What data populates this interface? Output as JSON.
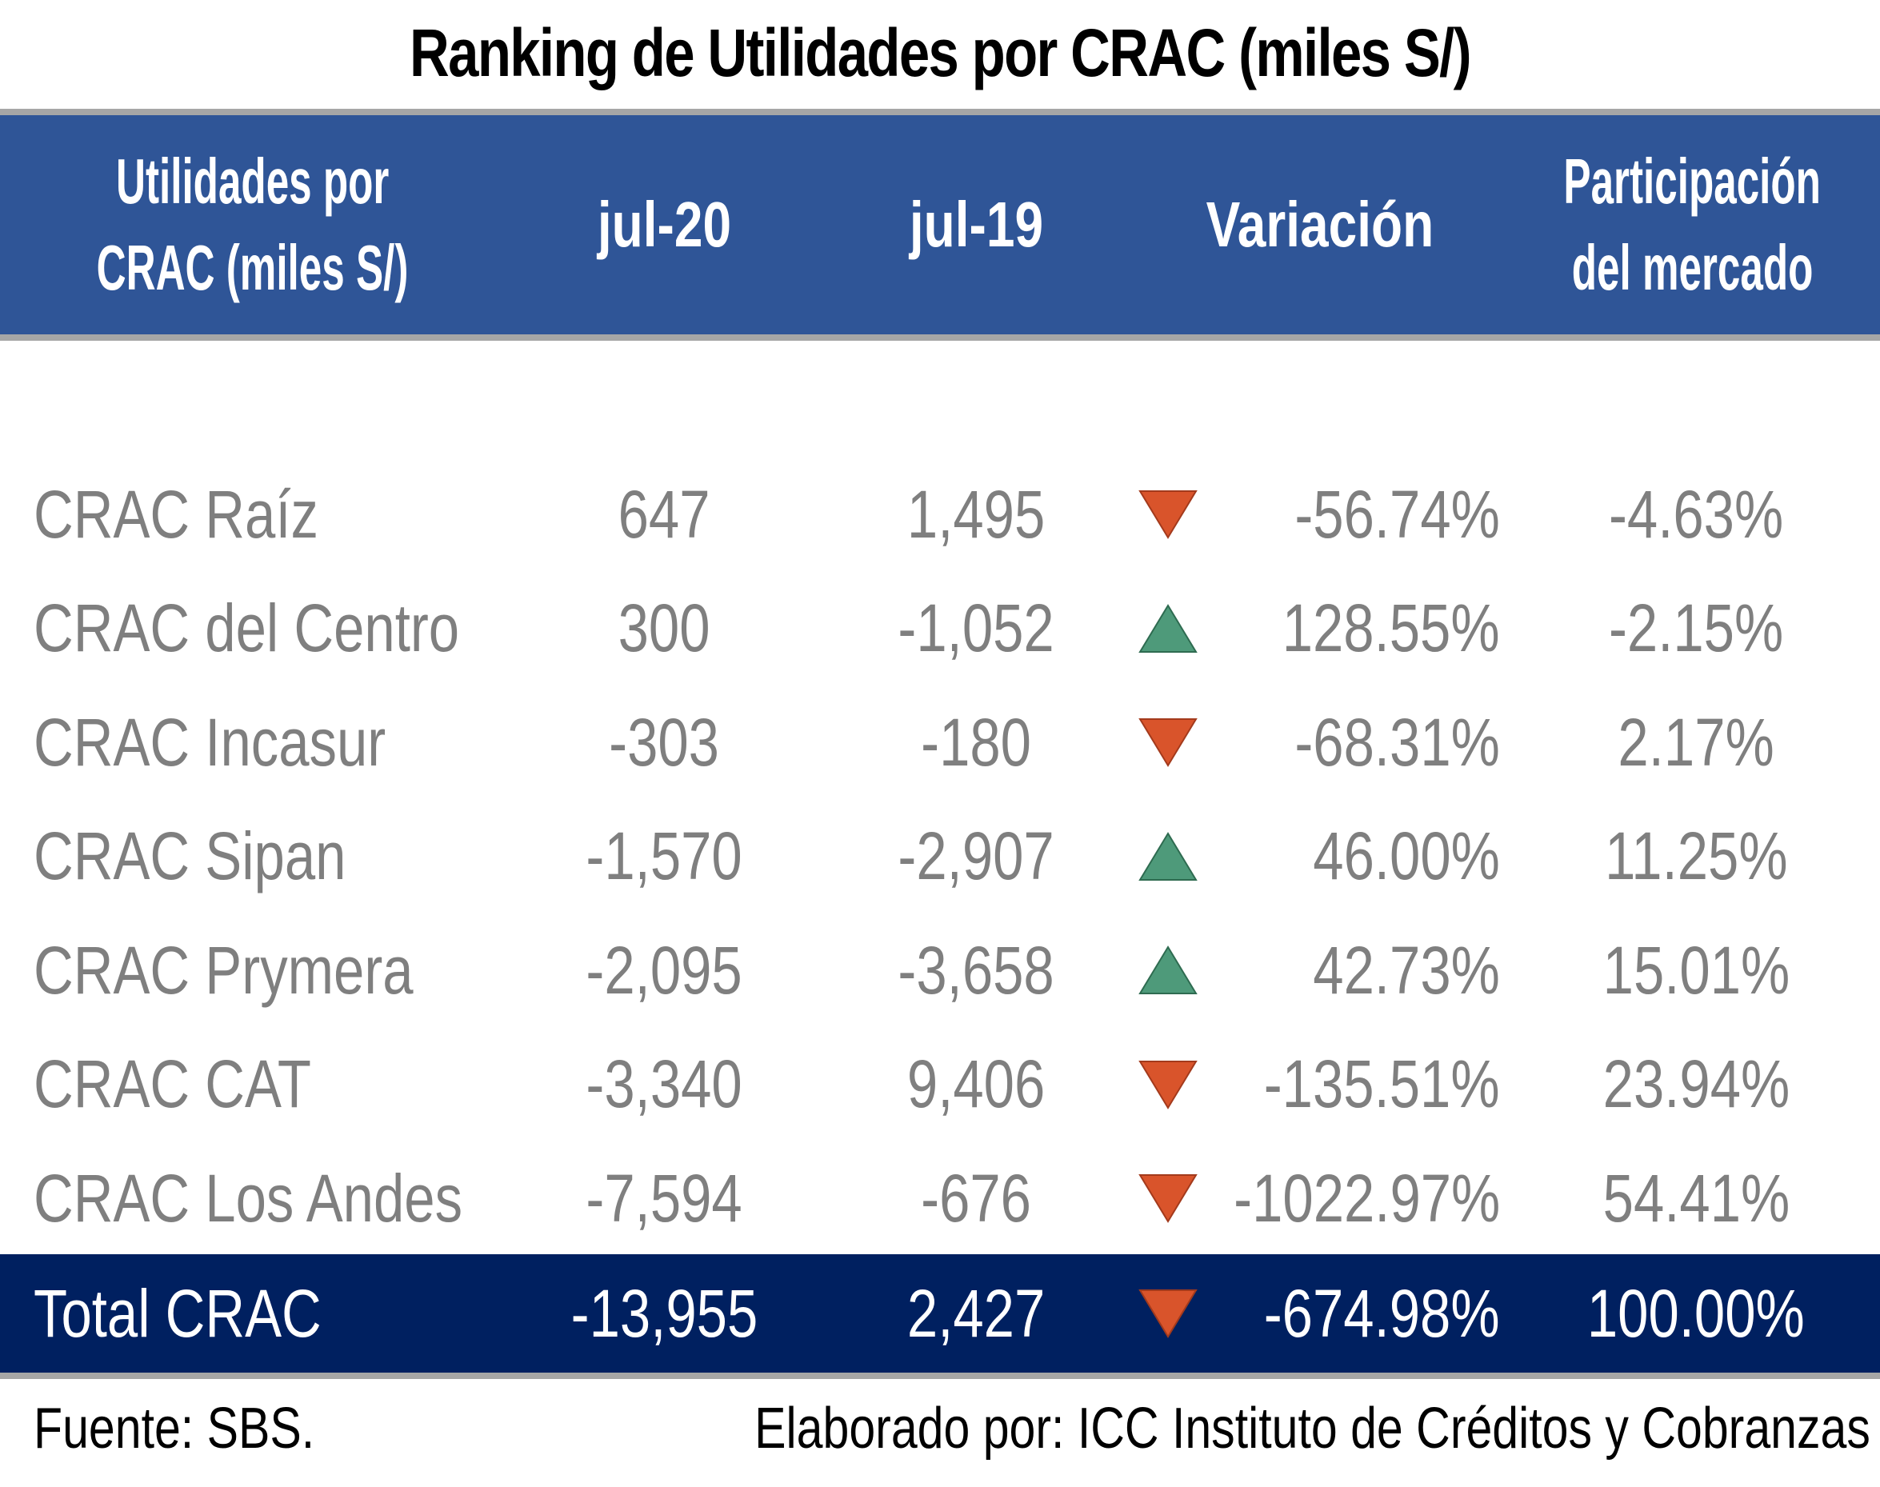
{
  "chart_data": {
    "type": "table",
    "title": "Ranking de Utilidades por CRAC (miles S/)",
    "columns": [
      "Utilidades por CRAC (miles S/)",
      "jul-20",
      "jul-19",
      "Variación",
      "Participación del mercado"
    ],
    "header": {
      "name_line1": "Utilidades por",
      "name_line2": "CRAC (miles S/)",
      "jul20": "jul-20",
      "jul19": "jul-19",
      "variacion": "Variación",
      "part_line1": "Participación",
      "part_line2": "del mercado"
    },
    "rows": [
      {
        "name": "CRAC Raíz",
        "jul20": "647",
        "jul19": "1,495",
        "direction": "down",
        "variacion": "-56.74%",
        "participacion": "-4.63%"
      },
      {
        "name": "CRAC del Centro",
        "jul20": "300",
        "jul19": "-1,052",
        "direction": "up",
        "variacion": "128.55%",
        "participacion": "-2.15%"
      },
      {
        "name": "CRAC Incasur",
        "jul20": "-303",
        "jul19": "-180",
        "direction": "down",
        "variacion": "-68.31%",
        "participacion": "2.17%"
      },
      {
        "name": "CRAC Sipan",
        "jul20": "-1,570",
        "jul19": "-2,907",
        "direction": "up",
        "variacion": "46.00%",
        "participacion": "11.25%"
      },
      {
        "name": "CRAC Prymera",
        "jul20": "-2,095",
        "jul19": "-3,658",
        "direction": "up",
        "variacion": "42.73%",
        "participacion": "15.01%"
      },
      {
        "name": "CRAC CAT",
        "jul20": "-3,340",
        "jul19": "9,406",
        "direction": "down",
        "variacion": "-135.51%",
        "participacion": "23.94%"
      },
      {
        "name": "CRAC Los Andes",
        "jul20": "-7,594",
        "jul19": "-676",
        "direction": "down",
        "variacion": "-1022.97%",
        "participacion": "54.41%"
      }
    ],
    "total": {
      "name": "Total CRAC",
      "jul20": "-13,955",
      "jul19": "2,427",
      "direction": "down",
      "variacion": "-674.98%",
      "participacion": "100.00%"
    }
  },
  "footer": {
    "source": "Fuente: SBS.",
    "credit": "Elaborado por: ICC Instituto de Créditos y Cobranzas"
  },
  "colors": {
    "header_bg": "#2f5597",
    "total_bg": "#002060",
    "body_text": "#7f7f7f",
    "arrow_up": "#4e9a7a",
    "arrow_down": "#d9542b",
    "separator": "#a6a6a6"
  },
  "icons": {
    "up": "triangle-up-icon",
    "down": "triangle-down-icon"
  }
}
